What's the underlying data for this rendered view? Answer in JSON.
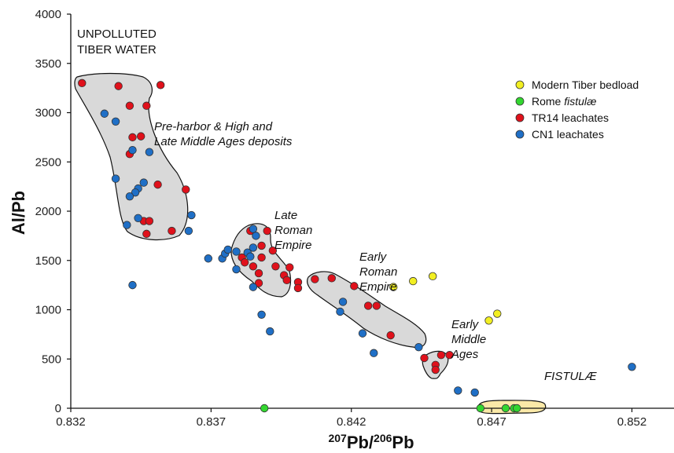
{
  "chart_data": {
    "type": "scatter",
    "xlabel_parts": {
      "sup1": "207",
      "base1": "Pb/",
      "sup2": "206",
      "base2": "Pb"
    },
    "ylabel": "Al/Pb",
    "xlim": [
      0.832,
      0.8535
    ],
    "ylim": [
      0,
      4000
    ],
    "xticks": [
      "0.832",
      "0.837",
      "0.842",
      "0.847",
      "0.852"
    ],
    "yticks": [
      "0",
      "500",
      "1000",
      "1500",
      "2000",
      "2500",
      "3000",
      "3500",
      "4000"
    ],
    "grid": false,
    "legend_position": "top-right",
    "annotations": {
      "unpolluted": [
        "UNPOLLUTED",
        "TIBER WATER"
      ],
      "preharbor": [
        "Pre-harbor & High and",
        "Late Middle Ages deposits"
      ],
      "late_roman": [
        "Late",
        "Roman",
        "Empire"
      ],
      "early_roman": [
        "Early",
        "Roman",
        "Empire"
      ],
      "early_middle": [
        "Early",
        "Middle",
        "Ages"
      ],
      "fistulae": "FISTULÆ"
    },
    "colors": {
      "Modern Tiber bedload": "#f2ef22",
      "Rome fistulae": "#33d630",
      "TR14 leachates": "#e0111b",
      "CN1 leachates": "#1f6fc6",
      "cluster_fill": "#d9d9d9",
      "fistulae_fill": "#fbe9a8"
    },
    "legend": [
      {
        "key": "modern",
        "label": "Modern Tiber bedload",
        "label_it": ""
      },
      {
        "key": "fistulae",
        "label": "Rome ",
        "label_it": "fistulæ"
      },
      {
        "key": "tr14",
        "label": "TR14 leachates",
        "label_it": ""
      },
      {
        "key": "cn1",
        "label": "CN1 leachates",
        "label_it": ""
      }
    ],
    "series": [
      {
        "key": "modern",
        "name": "Modern Tiber bedload",
        "points": [
          [
            0.8435,
            1230
          ],
          [
            0.8442,
            1290
          ],
          [
            0.8449,
            1340
          ],
          [
            0.8469,
            890
          ],
          [
            0.8472,
            960
          ]
        ]
      },
      {
        "key": "fistulae",
        "name": "Rome fistulæ",
        "points": [
          [
            0.8389,
            0
          ],
          [
            0.8466,
            0
          ],
          [
            0.8475,
            0
          ],
          [
            0.8478,
            0
          ],
          [
            0.8479,
            0
          ]
        ]
      },
      {
        "key": "tr14",
        "name": "TR14 leachates",
        "points": [
          [
            0.8324,
            3300
          ],
          [
            0.8337,
            3270
          ],
          [
            0.8352,
            3280
          ],
          [
            0.8341,
            3070
          ],
          [
            0.8347,
            3070
          ],
          [
            0.8342,
            2750
          ],
          [
            0.8345,
            2760
          ],
          [
            0.8341,
            2580
          ],
          [
            0.8351,
            2270
          ],
          [
            0.8361,
            2220
          ],
          [
            0.8346,
            1900
          ],
          [
            0.8348,
            1900
          ],
          [
            0.8347,
            1770
          ],
          [
            0.8356,
            1800
          ],
          [
            0.8384,
            1800
          ],
          [
            0.839,
            1800
          ],
          [
            0.8388,
            1650
          ],
          [
            0.8381,
            1530
          ],
          [
            0.8388,
            1530
          ],
          [
            0.8392,
            1600
          ],
          [
            0.8382,
            1480
          ],
          [
            0.8385,
            1440
          ],
          [
            0.8393,
            1440
          ],
          [
            0.8398,
            1430
          ],
          [
            0.8387,
            1370
          ],
          [
            0.8396,
            1350
          ],
          [
            0.8397,
            1300
          ],
          [
            0.8401,
            1280
          ],
          [
            0.8387,
            1270
          ],
          [
            0.8401,
            1220
          ],
          [
            0.8407,
            1310
          ],
          [
            0.8413,
            1320
          ],
          [
            0.8421,
            1240
          ],
          [
            0.8426,
            1040
          ],
          [
            0.8429,
            1040
          ],
          [
            0.8434,
            740
          ],
          [
            0.8446,
            510
          ],
          [
            0.8452,
            540
          ],
          [
            0.8455,
            540
          ],
          [
            0.845,
            440
          ],
          [
            0.845,
            390
          ]
        ]
      },
      {
        "key": "cn1",
        "name": "CN1 leachates",
        "points": [
          [
            0.8332,
            2990
          ],
          [
            0.8336,
            2910
          ],
          [
            0.8342,
            2620
          ],
          [
            0.8348,
            2600
          ],
          [
            0.8336,
            2330
          ],
          [
            0.8346,
            2290
          ],
          [
            0.8344,
            2230
          ],
          [
            0.8343,
            2190
          ],
          [
            0.8341,
            2150
          ],
          [
            0.8344,
            1930
          ],
          [
            0.834,
            1860
          ],
          [
            0.8363,
            1960
          ],
          [
            0.8362,
            1800
          ],
          [
            0.8342,
            1250
          ],
          [
            0.8369,
            1520
          ],
          [
            0.8374,
            1520
          ],
          [
            0.8375,
            1570
          ],
          [
            0.8376,
            1610
          ],
          [
            0.8379,
            1590
          ],
          [
            0.8379,
            1410
          ],
          [
            0.8385,
            1820
          ],
          [
            0.8386,
            1750
          ],
          [
            0.8383,
            1580
          ],
          [
            0.8385,
            1630
          ],
          [
            0.8384,
            1540
          ],
          [
            0.8385,
            1230
          ],
          [
            0.8388,
            950
          ],
          [
            0.8391,
            780
          ],
          [
            0.8416,
            980
          ],
          [
            0.8417,
            1080
          ],
          [
            0.8424,
            760
          ],
          [
            0.8428,
            560
          ],
          [
            0.8444,
            620
          ],
          [
            0.8458,
            180
          ],
          [
            0.8464,
            160
          ],
          [
            0.852,
            420
          ]
        ]
      }
    ]
  }
}
